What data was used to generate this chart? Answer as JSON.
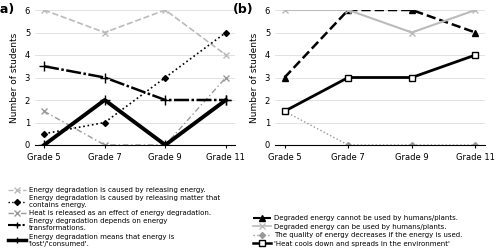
{
  "grades": [
    "Grade 5",
    "Grade 7",
    "Grade 9",
    "Grade 11"
  ],
  "panel_a": {
    "title": "(a)",
    "series": [
      {
        "label": "Energy degradation is caused by releasing energy.",
        "values": [
          6,
          5,
          6,
          4
        ],
        "color": "#aaaaaa",
        "linestyle": "--",
        "marker": "x",
        "linewidth": 1.2,
        "markersize": 5
      },
      {
        "label": "Energy degradation is caused by releasing matter that\ncontains energy.",
        "values": [
          0.5,
          1,
          3,
          5
        ],
        "color": "black",
        "linestyle": ":",
        "marker": "D",
        "linewidth": 1.2,
        "markersize": 4
      },
      {
        "label": "Heat is released as an effect of energy degradation.",
        "values": [
          1.5,
          0,
          0,
          3
        ],
        "color": "#888888",
        "linestyle": "--",
        "marker": "x",
        "linewidth": 1.0,
        "markersize": 5
      },
      {
        "label": "Energy degradation depends on energy\ntransformations.",
        "values": [
          3.5,
          3,
          2,
          2
        ],
        "color": "black",
        "linestyle": "-",
        "marker": "+",
        "linewidth": 1.8,
        "markersize": 7
      },
      {
        "label": "Energy degradation means that energy is\n'lost'/'consumed'.",
        "values": [
          0,
          2,
          0,
          2
        ],
        "color": "black",
        "linestyle": "-",
        "marker": "+",
        "linewidth": 2.8,
        "markersize": 7
      }
    ]
  },
  "panel_b": {
    "title": "(b)",
    "series": [
      {
        "label": "Degraded energy cannot be used by humans/plants.",
        "values": [
          3,
          6,
          6,
          5
        ],
        "color": "black",
        "linestyle": "--",
        "marker": "^",
        "linewidth": 1.8,
        "markersize": 5
      },
      {
        "label": "Degraded energy can be used by humans/plants.",
        "values": [
          6,
          6,
          5,
          6
        ],
        "color": "#aaaaaa",
        "linestyle": "-",
        "marker": "x",
        "linewidth": 1.5,
        "markersize": 5
      },
      {
        "label": "The quality of energy decreases if the energy is used.",
        "values": [
          1.5,
          0,
          0,
          0
        ],
        "color": "#888888",
        "linestyle": ":",
        "marker": "D",
        "linewidth": 1.0,
        "markersize": 4
      },
      {
        "label": "'Heat cools down and spreads in the environment'",
        "values": [
          1.5,
          3,
          3,
          4
        ],
        "color": "black",
        "linestyle": "-",
        "marker": "s",
        "linewidth": 2.0,
        "markersize": 5
      }
    ]
  },
  "ylim": [
    0,
    6
  ],
  "yticks": [
    0,
    1,
    2,
    3,
    4,
    5,
    6
  ],
  "ylabel": "Number of students",
  "background_color": "#ffffff",
  "legend_fontsize": 5.0,
  "axis_fontsize": 6.5,
  "tick_fontsize": 6,
  "title_fontsize": 9
}
